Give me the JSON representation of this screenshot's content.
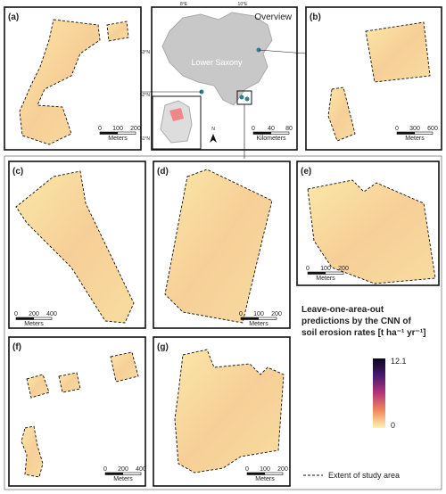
{
  "panels": [
    {
      "label": "(a)",
      "scale": [
        "0",
        "100",
        "200"
      ],
      "unit": "Meters"
    },
    {
      "label": "(b)",
      "scale": [
        "0",
        "300",
        "600"
      ],
      "unit": "Meters"
    },
    {
      "label": "(c)",
      "scale": [
        "0",
        "200",
        "400"
      ],
      "unit": "Meters"
    },
    {
      "label": "(d)",
      "scale": [
        "0",
        "100",
        "200"
      ],
      "unit": "Meters"
    },
    {
      "label": "(e)",
      "scale": [
        "0",
        "100",
        "200"
      ],
      "unit": "Meters"
    },
    {
      "label": "(f)",
      "scale": [
        "0",
        "200",
        "400"
      ],
      "unit": "Meters"
    },
    {
      "label": "(g)",
      "scale": [
        "0",
        "100",
        "200"
      ],
      "unit": "Meters"
    }
  ],
  "overview": {
    "title": "Overview",
    "region": "Lower Saxony",
    "lon_labels": [
      "8°E",
      "10°E"
    ],
    "lat_labels": [
      "53°N",
      "52°N",
      "51°N"
    ],
    "scale": [
      "0",
      "40",
      "80"
    ],
    "unit": "Kilometers",
    "north": "N"
  },
  "legend": {
    "title": [
      "Leave-one-area-out",
      "predictions by the CNN of",
      "soil erosion rates [t ha⁻¹ yr⁻¹]"
    ],
    "max": "12.1",
    "min": "0",
    "extent": "Extent of study area"
  }
}
